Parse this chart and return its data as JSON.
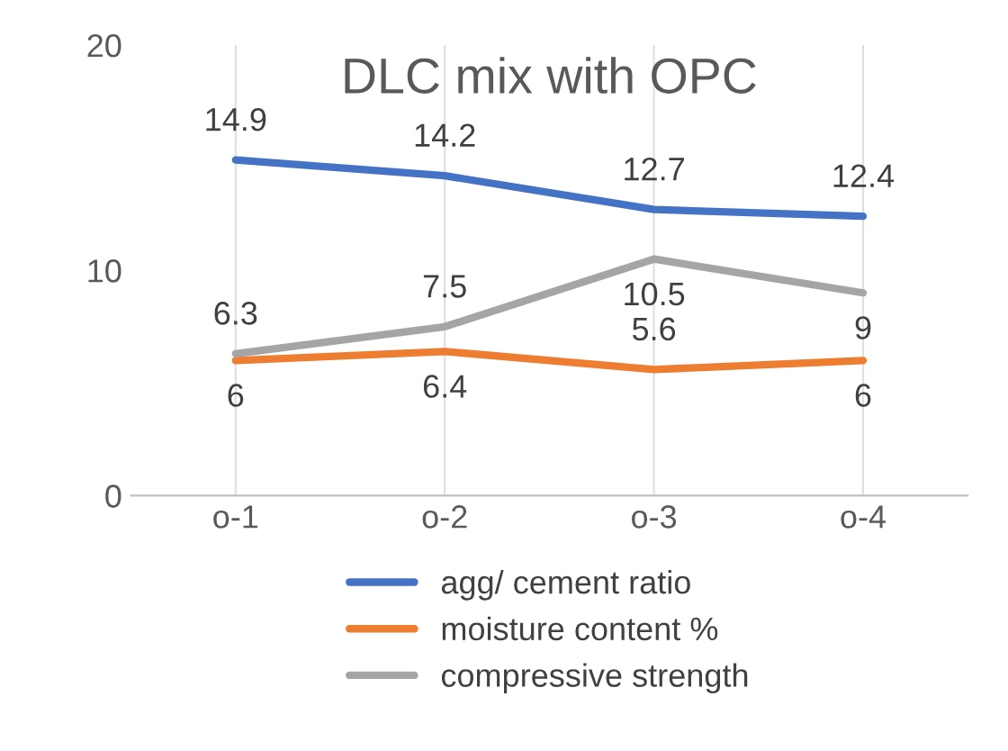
{
  "chart_data": {
    "type": "line",
    "title": "DLC mix with OPC",
    "categories": [
      "o-1",
      "o-2",
      "o-3",
      "o-4"
    ],
    "series": [
      {
        "name": "agg/ cement ratio",
        "color": "#4472c4",
        "values": [
          14.9,
          14.2,
          12.7,
          12.4
        ]
      },
      {
        "name": "moisture content %",
        "color": "#ed7d31",
        "values": [
          6,
          6.4,
          5.6,
          6
        ]
      },
      {
        "name": "compressive strength",
        "color": "#a5a5a5",
        "values": [
          6.3,
          7.5,
          10.5,
          9
        ]
      }
    ],
    "ylim": [
      0,
      20
    ],
    "yticks": [
      0,
      10,
      20
    ],
    "grid": "x",
    "legend": "bottom",
    "data_labels": true,
    "marker": "none",
    "line_style": "solid"
  }
}
